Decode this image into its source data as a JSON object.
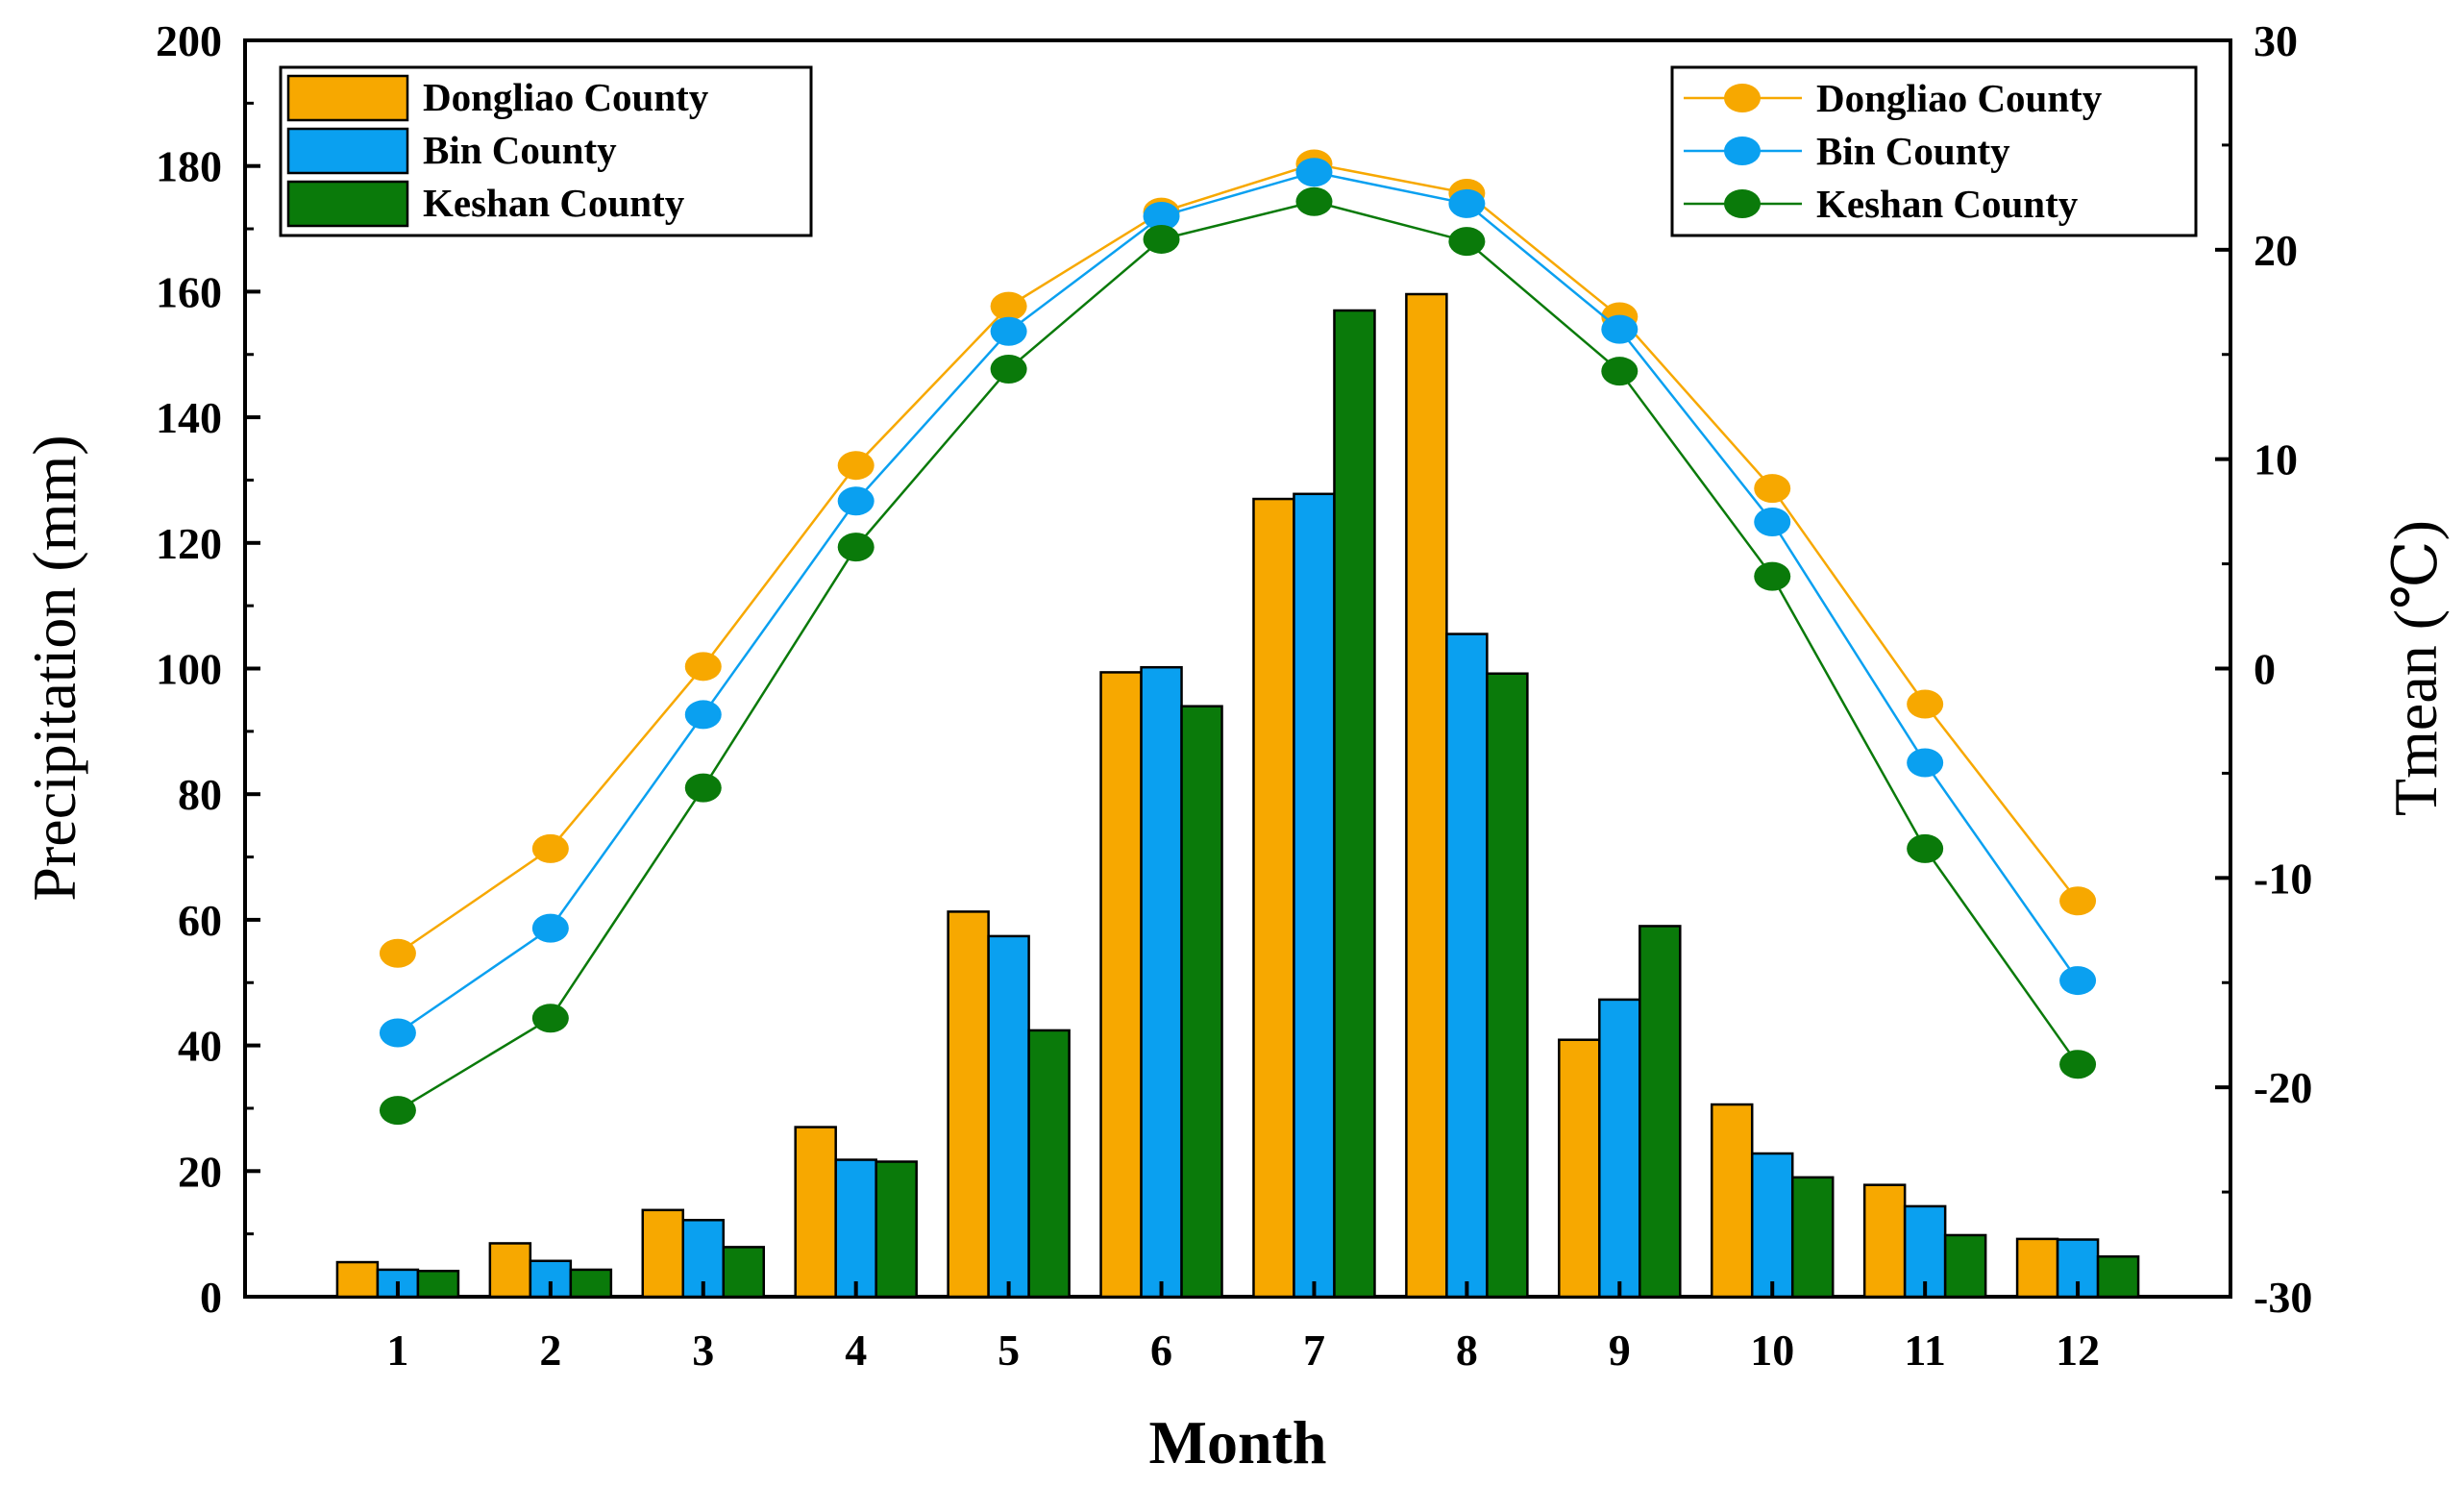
{
  "chart_data": {
    "type": "bar+line",
    "xlabel": "Month",
    "ylabel_left": "Precipitation (mm)",
    "ylabel_right": "Tmean (℃)",
    "ylim_left": [
      0,
      200
    ],
    "ylim_right": [
      -30,
      30
    ],
    "yticks_left": [
      "0",
      "20",
      "40",
      "60",
      "80",
      "100",
      "120",
      "140",
      "160",
      "180",
      "200"
    ],
    "yticks_right": [
      "-30",
      "-20",
      "-10",
      "0",
      "10",
      "20",
      "30"
    ],
    "categories": [
      "1",
      "2",
      "3",
      "4",
      "5",
      "6",
      "7",
      "8",
      "9",
      "10",
      "11",
      "12"
    ],
    "bar_series": [
      {
        "name": "Dongliao County",
        "color": "#F7A800",
        "values": [
          5.5,
          8.5,
          13.8,
          27,
          61.3,
          99.4,
          127,
          159.6,
          40.9,
          30.6,
          17.8,
          9.2
        ]
      },
      {
        "name": "Bin County",
        "color": "#0AA0F0",
        "values": [
          4.3,
          5.7,
          12.2,
          21.8,
          57.4,
          100.2,
          127.8,
          105.5,
          47.3,
          22.8,
          14.4,
          9.1
        ]
      },
      {
        "name": "Keshan County",
        "color": "#0A7A0A",
        "values": [
          4.1,
          4.3,
          7.9,
          21.5,
          42.4,
          94,
          157,
          99.2,
          59,
          19,
          9.8,
          6.4
        ]
      }
    ],
    "line_series": [
      {
        "name": "Dongliao County",
        "color": "#F7A800",
        "values": [
          -13.6,
          -8.6,
          0.1,
          9.7,
          17.3,
          21.8,
          24.1,
          22.7,
          16.8,
          8.6,
          -1.7,
          -11.1
        ]
      },
      {
        "name": "Bin County",
        "color": "#0AA0F0",
        "values": [
          -17.4,
          -12.4,
          -2.2,
          8,
          16.1,
          21.6,
          23.7,
          22.2,
          16.2,
          7,
          -4.5,
          -14.9
        ]
      },
      {
        "name": "Keshan County",
        "color": "#0A7A0A",
        "values": [
          -21.1,
          -16.7,
          -5.7,
          5.8,
          14.3,
          20.5,
          22.3,
          20.4,
          14.2,
          4.4,
          -8.6,
          -18.9
        ]
      }
    ],
    "legend_bars_position": "top-left",
    "legend_lines_position": "top-right"
  }
}
